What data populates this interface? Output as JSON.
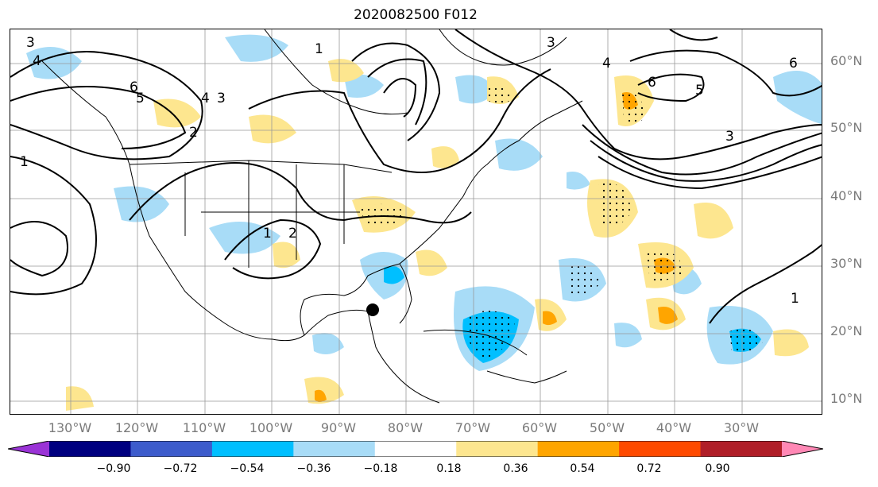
{
  "title": "2020082500 F012",
  "lat_labels": [
    "60°N",
    "50°N",
    "40°N",
    "30°N",
    "20°N",
    "10°N"
  ],
  "lon_labels": [
    "130°W",
    "120°W",
    "110°W",
    "100°W",
    "90°W",
    "80°W",
    "70°W",
    "60°W",
    "50°W",
    "40°W",
    "30°W"
  ],
  "colorbar": {
    "tick_labels": [
      "−0.90",
      "−0.72",
      "−0.54",
      "−0.36",
      "−0.18",
      "0.18",
      "0.36",
      "0.54",
      "0.72",
      "0.90"
    ],
    "colors": [
      "#9a33d6",
      "#000080",
      "#3d5ccc",
      "#00bfff",
      "#a8dcf7",
      "#ffffff",
      "#fde68f",
      "#ffa500",
      "#ff4a00",
      "#b01e28",
      "#ff88b5"
    ]
  },
  "contour_labels": [
    "3",
    "4",
    "6",
    "5",
    "4",
    "3",
    "2",
    "1",
    "1",
    "2",
    "1",
    "3",
    "4",
    "6",
    "5",
    "6",
    "3",
    "1"
  ],
  "map_elements": [
    "coastlines",
    "state-borders",
    "gridlines",
    "contours",
    "shading",
    "stippling",
    "storm-marker"
  ]
}
